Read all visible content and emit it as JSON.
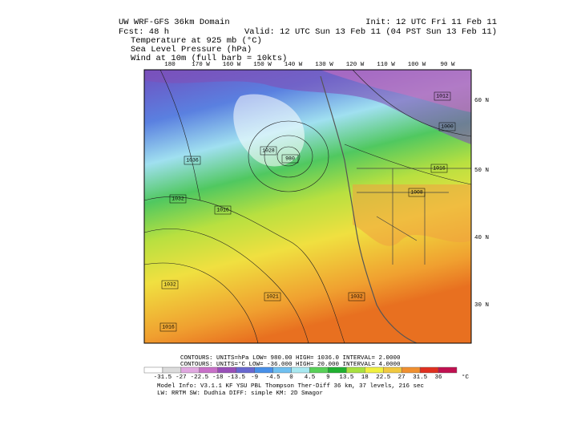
{
  "header": {
    "model": "UW WRF-GFS 36km Domain",
    "forecast": "Fcst:  48 h",
    "init": "Init: 12 UTC Fri 11 Feb 11",
    "valid": "Valid: 12 UTC Sun 13 Feb 11 (04 PST Sun 13 Feb 11)",
    "fields": [
      "Temperature at 925 mb (°C)",
      "Sea Level Pressure (hPa)",
      "Wind at 10m (full barb = 10kts)"
    ]
  },
  "map": {
    "longitudes": [
      "180",
      "170 W",
      "160 W",
      "150 W",
      "140 W",
      "130 W",
      "120 W",
      "110 W",
      "100 W",
      "90 W"
    ],
    "latitudes": [
      "60 N",
      "50 N",
      "40 N",
      "30 N"
    ],
    "pressure_labels": [
      "980",
      "1036",
      "1032",
      "1016",
      "1028",
      "1032",
      "1021",
      "1032",
      "1016",
      "1008",
      "1012",
      "1016",
      "1000"
    ]
  },
  "legend": {
    "contours": [
      "CONTOURS:  UNITS=hPa  LOW=  980.00      HIGH=  1036.0      INTERVAL=   2.0000",
      "CONTOURS:  UNITS=°C   LOW= -36.000      HIGH=  20.000      INTERVAL=   4.0000"
    ],
    "colorbar": [
      "-31.5",
      "-27",
      "-22.5",
      "-18",
      "-13.5",
      "-9",
      "-4.5",
      "0",
      "4.5",
      "9",
      "13.5",
      "18",
      "22.5",
      "27",
      "31.5",
      "36"
    ],
    "unit": "°C"
  },
  "footer": [
    "Model Info: V3.1.1    KF     YSU PBL  Thompson     Ther-Diff 36 km,    37 levels,  216 sec",
    "LW: RRTM  SW: Dudhia   DIFF: simple  KM: 2D Smagor"
  ]
}
